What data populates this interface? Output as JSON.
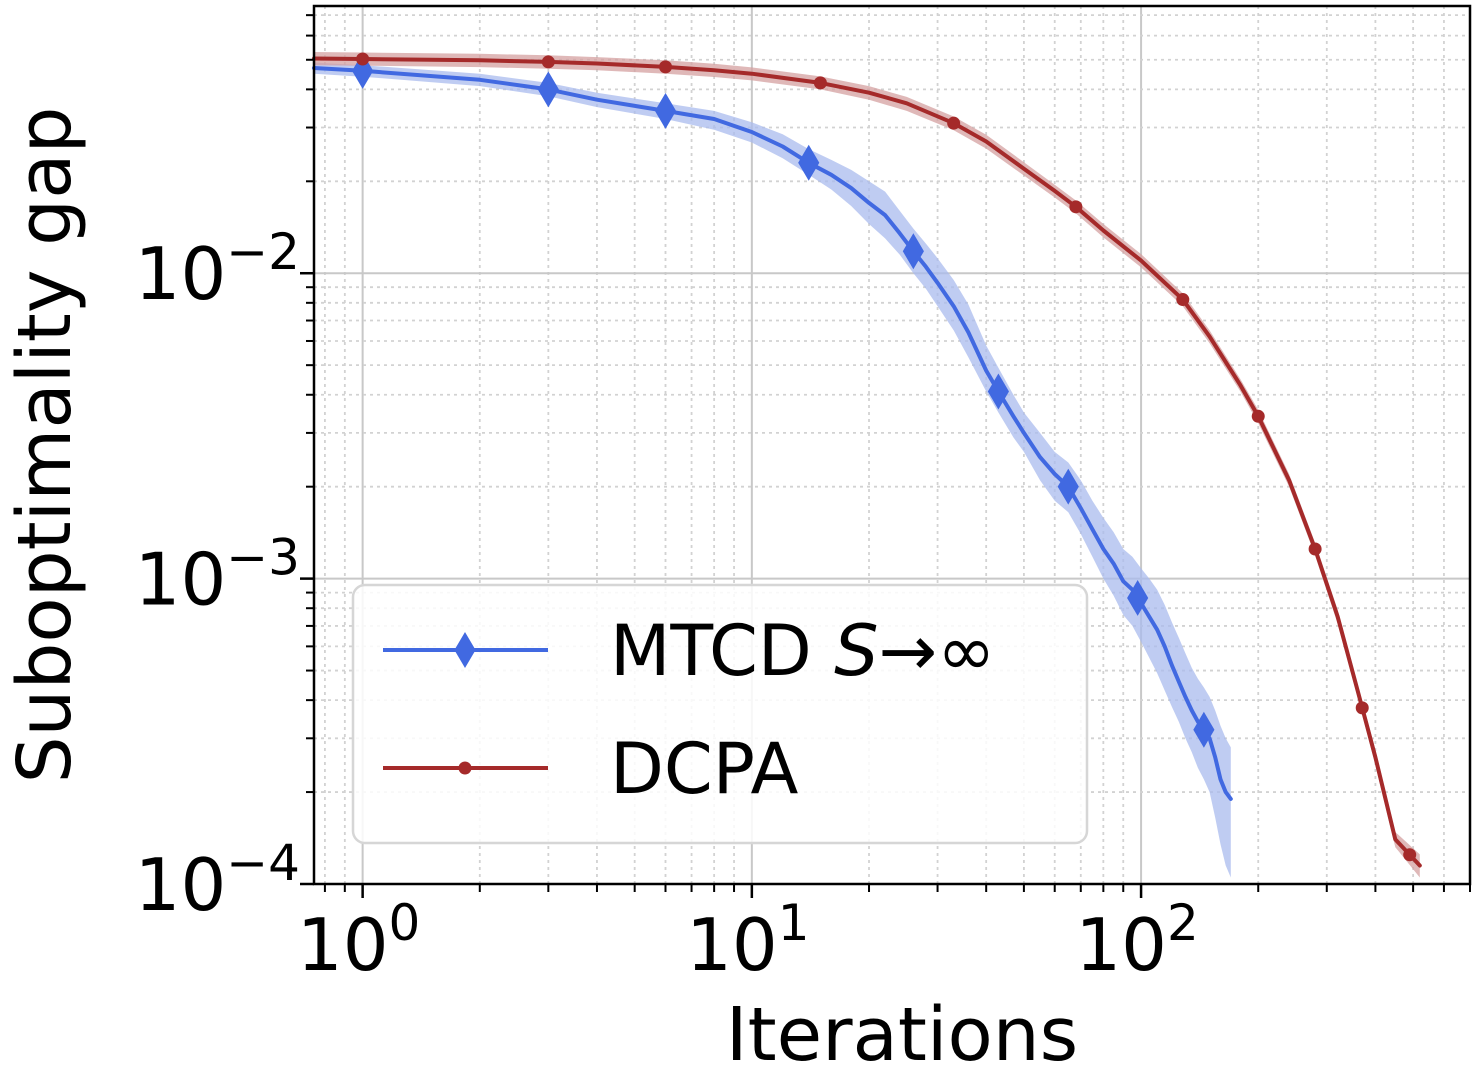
{
  "chart_data": {
    "type": "line",
    "title": "",
    "xlabel": "Iterations",
    "ylabel": "Suboptimality gap",
    "x_scale": "log",
    "y_scale": "log",
    "xlim": [
      0.75,
      700
    ],
    "ylim": [
      0.0001,
      0.075
    ],
    "x_ticks": [
      {
        "value": 1,
        "base": "10",
        "exp": "0"
      },
      {
        "value": 10,
        "base": "10",
        "exp": "1"
      },
      {
        "value": 100,
        "base": "10",
        "exp": "2"
      }
    ],
    "y_ticks": [
      {
        "value": 0.0001,
        "base": "10",
        "exp": "−4"
      },
      {
        "value": 0.001,
        "base": "10",
        "exp": "−3"
      },
      {
        "value": 0.01,
        "base": "10",
        "exp": "−2"
      }
    ],
    "grid": true,
    "legend_position": "lower-left",
    "series": [
      {
        "name": "MTCD S→∞",
        "name_main": "MTCD ",
        "name_italic": "S",
        "name_suffix": "→∞",
        "color": "#4169e1",
        "band_color": "#aabbee",
        "marker": "diamond",
        "x": [
          0.75,
          1,
          2,
          3,
          4,
          6,
          8,
          10,
          12,
          14,
          16,
          18,
          20,
          22,
          24,
          26,
          28,
          30,
          33,
          36,
          40,
          43,
          47,
          50,
          55,
          60,
          65,
          70,
          75,
          80,
          85,
          90,
          95,
          100,
          105,
          110,
          115,
          120,
          125,
          130,
          135,
          140,
          145,
          150,
          155,
          160,
          165,
          170
        ],
        "y": [
          0.047,
          0.046,
          0.043,
          0.04,
          0.037,
          0.034,
          0.032,
          0.029,
          0.026,
          0.023,
          0.021,
          0.019,
          0.017,
          0.0155,
          0.0135,
          0.0118,
          0.0105,
          0.0093,
          0.0078,
          0.0064,
          0.0048,
          0.0041,
          0.0034,
          0.003,
          0.0025,
          0.0022,
          0.002,
          0.0017,
          0.00145,
          0.00125,
          0.00112,
          0.00098,
          0.00092,
          0.00083,
          0.00075,
          0.00068,
          0.0006,
          0.00052,
          0.00046,
          0.00041,
          0.00037,
          0.00034,
          0.00032,
          0.0003,
          0.00026,
          0.00022,
          0.0002,
          0.00019
        ],
        "lower": [
          0.045,
          0.044,
          0.041,
          0.038,
          0.035,
          0.032,
          0.0295,
          0.0268,
          0.0238,
          0.021,
          0.0188,
          0.0166,
          0.0145,
          0.013,
          0.0115,
          0.01,
          0.0089,
          0.0078,
          0.0065,
          0.0053,
          0.0041,
          0.0035,
          0.0029,
          0.0026,
          0.0021,
          0.0018,
          0.00165,
          0.0014,
          0.00118,
          0.001,
          0.00088,
          0.00076,
          0.0007,
          0.00062,
          0.00055,
          0.00049,
          0.00043,
          0.00038,
          0.00034,
          0.0003,
          0.00027,
          0.00024,
          0.00022,
          0.0002,
          0.000165,
          0.000135,
          0.000115,
          0.000105
        ],
        "upper": [
          0.049,
          0.048,
          0.045,
          0.042,
          0.039,
          0.036,
          0.034,
          0.0312,
          0.0285,
          0.0255,
          0.0235,
          0.0218,
          0.02,
          0.0185,
          0.016,
          0.014,
          0.0125,
          0.0112,
          0.0095,
          0.0079,
          0.0058,
          0.0049,
          0.004,
          0.0035,
          0.003,
          0.0026,
          0.0024,
          0.0021,
          0.0018,
          0.00158,
          0.00142,
          0.00125,
          0.00118,
          0.00108,
          0.001,
          0.00092,
          0.00082,
          0.00072,
          0.00064,
          0.00057,
          0.00051,
          0.00047,
          0.00044,
          0.00041,
          0.00037,
          0.00033,
          0.0003,
          0.00028
        ],
        "marker_x": [
          1,
          3,
          6,
          14,
          26,
          43,
          65,
          98,
          145
        ]
      },
      {
        "name": "DCPA",
        "color": "#a52a2a",
        "band_color": "#d4a0a0",
        "marker": "circle",
        "x": [
          0.75,
          1,
          2,
          3,
          4,
          6,
          8,
          10,
          15,
          20,
          25,
          33,
          40,
          50,
          60,
          68,
          80,
          100,
          128,
          150,
          180,
          200,
          240,
          280,
          320,
          360,
          400,
          450,
          520
        ],
        "y": [
          0.0505,
          0.0503,
          0.0498,
          0.0492,
          0.0486,
          0.0474,
          0.0462,
          0.045,
          0.042,
          0.039,
          0.036,
          0.031,
          0.027,
          0.022,
          0.0186,
          0.0165,
          0.0138,
          0.011,
          0.0082,
          0.0062,
          0.0043,
          0.0034,
          0.0021,
          0.00125,
          0.00075,
          0.00043,
          0.00026,
          0.00014,
          0.000115
        ],
        "lower": [
          0.048,
          0.0478,
          0.0473,
          0.0467,
          0.0462,
          0.045,
          0.0439,
          0.0428,
          0.04,
          0.037,
          0.034,
          0.0294,
          0.0256,
          0.0209,
          0.0177,
          0.0157,
          0.0131,
          0.01045,
          0.0078,
          0.0059,
          0.0041,
          0.00323,
          0.002,
          0.00119,
          0.00071,
          0.00041,
          0.000245,
          0.000132,
          0.000105
        ],
        "upper": [
          0.053,
          0.0528,
          0.0523,
          0.0517,
          0.051,
          0.0498,
          0.0485,
          0.0472,
          0.0441,
          0.041,
          0.0378,
          0.0326,
          0.0284,
          0.0231,
          0.0195,
          0.0173,
          0.0145,
          0.01155,
          0.0086,
          0.0065,
          0.0045,
          0.00357,
          0.0022,
          0.00131,
          0.00079,
          0.00045,
          0.000275,
          0.000148,
          0.000125
        ],
        "marker_x": [
          1,
          3,
          6,
          15,
          33,
          68,
          128,
          200,
          280,
          370,
          490
        ]
      }
    ]
  }
}
